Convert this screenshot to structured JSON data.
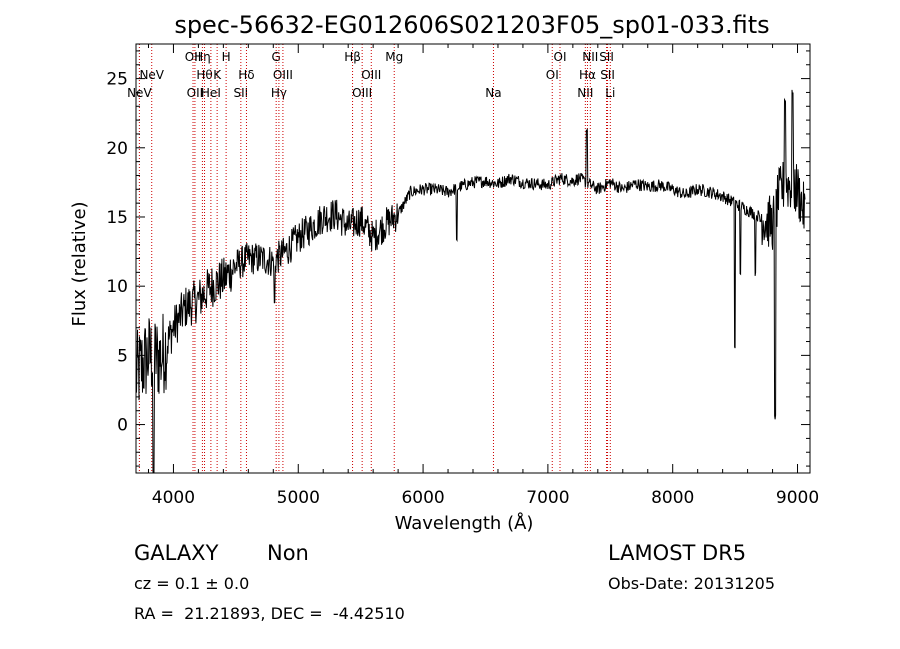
{
  "chart_data": {
    "type": "line",
    "title": "spec-56632-EG012606S021203F05_sp01-033.fits",
    "xlabel": "Wavelength (Å)",
    "ylabel": "Flux (relative)",
    "xlim": [
      3700,
      9100
    ],
    "ylim": [
      -3.5,
      27.5
    ],
    "xticks": [
      4000,
      5000,
      6000,
      7000,
      8000,
      9000
    ],
    "yticks": [
      0,
      5,
      10,
      15,
      20,
      25
    ],
    "grid": false,
    "line_color": "#000000",
    "line_marker_color": "#cc0000",
    "lines": [
      {
        "w": 3727,
        "label": "NeV",
        "row": 2
      },
      {
        "w": 3826,
        "label": "NeV",
        "row": 1
      },
      {
        "w": 4157,
        "label": "OII",
        "row": 0
      },
      {
        "w": 4172,
        "label": "OII",
        "row": 2
      },
      {
        "w": 4232,
        "label": "Hη",
        "row": 0
      },
      {
        "w": 4249,
        "label": "Hθ",
        "row": 1
      },
      {
        "w": 4300,
        "label": "HeI",
        "row": 2
      },
      {
        "w": 4350,
        "label": "K",
        "row": 1
      },
      {
        "w": 4422,
        "label": "H",
        "row": 0
      },
      {
        "w": 4540,
        "label": "SII",
        "row": 2
      },
      {
        "w": 4585,
        "label": "Hδ",
        "row": 1
      },
      {
        "w": 4823,
        "label": "G",
        "row": 0
      },
      {
        "w": 4845,
        "label": "Hγ",
        "row": 2
      },
      {
        "w": 4877,
        "label": "OIII",
        "row": 1
      },
      {
        "w": 5435,
        "label": "Hβ",
        "row": 0
      },
      {
        "w": 5512,
        "label": "OIII",
        "row": 2
      },
      {
        "w": 5585,
        "label": "OIII",
        "row": 1
      },
      {
        "w": 5769,
        "label": "Mg",
        "row": 0
      },
      {
        "w": 6564,
        "label": "Na",
        "row": 2
      },
      {
        "w": 7035,
        "label": "OI",
        "row": 1
      },
      {
        "w": 7097,
        "label": "OI",
        "row": 0
      },
      {
        "w": 7300,
        "label": "NII",
        "row": 2
      },
      {
        "w": 7317,
        "label": "Hα",
        "row": 1
      },
      {
        "w": 7340,
        "label": "NII",
        "row": 0
      },
      {
        "w": 7470,
        "label": "SII",
        "row": 0
      },
      {
        "w": 7478,
        "label": "SII",
        "row": 1
      },
      {
        "w": 7500,
        "label": "Li",
        "row": 2
      }
    ],
    "spectrum_anchors": [
      [
        3700,
        3.5
      ],
      [
        3800,
        5.0
      ],
      [
        3900,
        4.8
      ],
      [
        4000,
        7.0
      ],
      [
        4100,
        8.5
      ],
      [
        4200,
        9.0
      ],
      [
        4300,
        10.0
      ],
      [
        4400,
        10.5
      ],
      [
        4500,
        11.5
      ],
      [
        4600,
        12.0
      ],
      [
        4700,
        12.0
      ],
      [
        4800,
        11.8
      ],
      [
        4900,
        12.5
      ],
      [
        5000,
        13.5
      ],
      [
        5100,
        14.2
      ],
      [
        5200,
        15.0
      ],
      [
        5300,
        15.2
      ],
      [
        5400,
        14.3
      ],
      [
        5500,
        14.8
      ],
      [
        5600,
        13.5
      ],
      [
        5700,
        14.5
      ],
      [
        5800,
        15.2
      ],
      [
        5900,
        16.8
      ],
      [
        6000,
        17.0
      ],
      [
        6100,
        17.0
      ],
      [
        6200,
        16.8
      ],
      [
        6300,
        17.2
      ],
      [
        6400,
        17.5
      ],
      [
        6500,
        17.6
      ],
      [
        6600,
        17.4
      ],
      [
        6700,
        17.8
      ],
      [
        6800,
        17.5
      ],
      [
        6900,
        17.4
      ],
      [
        7000,
        17.3
      ],
      [
        7100,
        17.8
      ],
      [
        7200,
        17.6
      ],
      [
        7250,
        17.8
      ],
      [
        7400,
        17.0
      ],
      [
        7500,
        17.5
      ],
      [
        7600,
        17.0
      ],
      [
        7700,
        17.4
      ],
      [
        7800,
        17.2
      ],
      [
        7900,
        17.3
      ],
      [
        8000,
        17.0
      ],
      [
        8100,
        16.6
      ],
      [
        8200,
        17.0
      ],
      [
        8300,
        16.8
      ],
      [
        8400,
        16.5
      ],
      [
        8500,
        16.0
      ],
      [
        8600,
        15.5
      ],
      [
        8700,
        15.0
      ],
      [
        8800,
        14.5
      ],
      [
        8850,
        16.5
      ],
      [
        8900,
        17.5
      ],
      [
        9000,
        17.0
      ],
      [
        9050,
        15.5
      ]
    ],
    "spectrum_features": [
      {
        "w": 7313,
        "y": 21.2,
        "note": "H-alpha emission peak"
      },
      {
        "w": 8498,
        "y": 5.6,
        "note": "absorption dip"
      },
      {
        "w": 8542,
        "y": 11.0,
        "note": "absorption"
      },
      {
        "w": 8662,
        "y": 10.8,
        "note": "absorption"
      },
      {
        "w": 8820,
        "y": 0.5,
        "note": "deep absorption"
      },
      {
        "w": 8900,
        "y": 23.5,
        "note": "noise spike"
      },
      {
        "w": 8960,
        "y": 24.0,
        "note": "noise spike"
      },
      {
        "w": 3840,
        "y": -3.5,
        "note": "noise dip"
      },
      {
        "w": 6270,
        "y": 13.2,
        "note": "absorption"
      },
      {
        "w": 4810,
        "y": 8.8,
        "note": "dip"
      }
    ]
  },
  "info": {
    "obj_class": "GALAXY",
    "obj_subclass": "Non",
    "cz_line": "cz = 0.1 ± 0.0",
    "radec_line": "RA =  21.21893, DEC =  -4.42510",
    "survey": "LAMOST DR5",
    "obs_date": "Obs-Date: 20131205"
  }
}
